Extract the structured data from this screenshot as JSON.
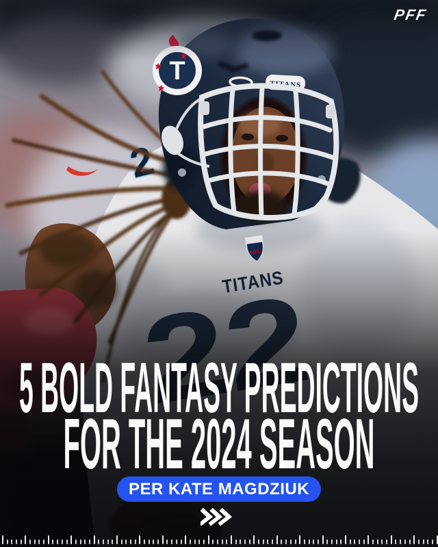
{
  "brand": {
    "logo": "PFF"
  },
  "title": {
    "line1": "5 BOLD FANTASY PREDICTIONS",
    "line2": "FOR THE 2024 SEASON"
  },
  "byline": {
    "label": "PER KATE MAGDZIUK",
    "pill_color": "#2453f0",
    "text_color": "#ffffff"
  },
  "chevrons": {
    "count": 3,
    "color": "#ffffff",
    "direction": "right"
  },
  "photo": {
    "helmet_bumper_text": "TITANS",
    "helmet_logo_letter": "T",
    "jersey_wordmark": "TITANS",
    "shoulder_number": "2",
    "chest_number": "22",
    "nfl_shield_text": "NFL"
  },
  "ruler": {
    "tick_count": 96,
    "major_every": 5
  },
  "colors": {
    "accent_blue": "#2453f0",
    "background_dark": "#0b0d12",
    "jersey_white": "#e7e7ea",
    "helmet_navy": "#1d2a3e",
    "sleeve_red": "#a2363f",
    "title_white": "#fafafa"
  }
}
